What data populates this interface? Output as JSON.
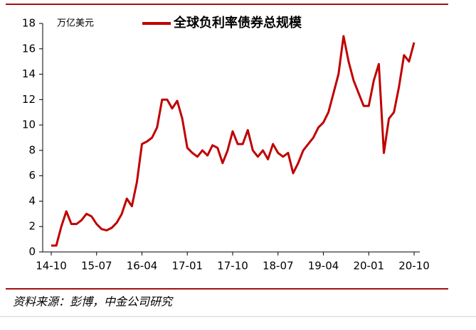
{
  "chart_data": {
    "type": "line",
    "y_label": "万亿美元",
    "source": "资料来源：彭博，中金公司研究",
    "categories": [
      "14-10",
      null,
      null,
      null,
      null,
      null,
      null,
      null,
      null,
      "15-07",
      null,
      null,
      null,
      null,
      null,
      null,
      null,
      null,
      "16-04",
      null,
      null,
      null,
      null,
      null,
      null,
      null,
      null,
      "17-01",
      null,
      null,
      null,
      null,
      null,
      null,
      null,
      null,
      "17-10",
      null,
      null,
      null,
      null,
      null,
      null,
      null,
      null,
      "18-07",
      null,
      null,
      null,
      null,
      null,
      null,
      null,
      null,
      "19-04",
      null,
      null,
      null,
      null,
      null,
      null,
      null,
      null,
      "20-01",
      null,
      null,
      null,
      null,
      null,
      null,
      null,
      null,
      "20-10"
    ],
    "series": [
      {
        "name": "全球负利率债券总规模",
        "color": "#c00000",
        "values": [
          0.5,
          0.5,
          2.0,
          3.2,
          2.2,
          2.2,
          2.5,
          3.0,
          2.8,
          2.2,
          1.8,
          1.7,
          1.9,
          2.3,
          3.0,
          4.2,
          3.6,
          5.5,
          8.5,
          8.7,
          9.0,
          9.8,
          12.0,
          12.0,
          11.3,
          11.9,
          10.5,
          8.2,
          7.8,
          7.5,
          8.0,
          7.6,
          8.4,
          8.2,
          7.0,
          8.0,
          9.5,
          8.5,
          8.5,
          9.6,
          8.0,
          7.5,
          8.0,
          7.3,
          8.5,
          7.8,
          7.5,
          7.8,
          6.2,
          7.0,
          8.0,
          8.5,
          9.0,
          9.8,
          10.2,
          11.0,
          12.5,
          14.0,
          17.0,
          15.0,
          13.5,
          12.5,
          11.5,
          11.5,
          13.5,
          14.8,
          7.8,
          10.5,
          11.0,
          13.0,
          15.5,
          15.0,
          16.5
        ]
      }
    ],
    "ylim": [
      0,
      18
    ],
    "yticks": [
      0,
      2,
      4,
      6,
      8,
      10,
      12,
      14,
      16,
      18
    ]
  }
}
